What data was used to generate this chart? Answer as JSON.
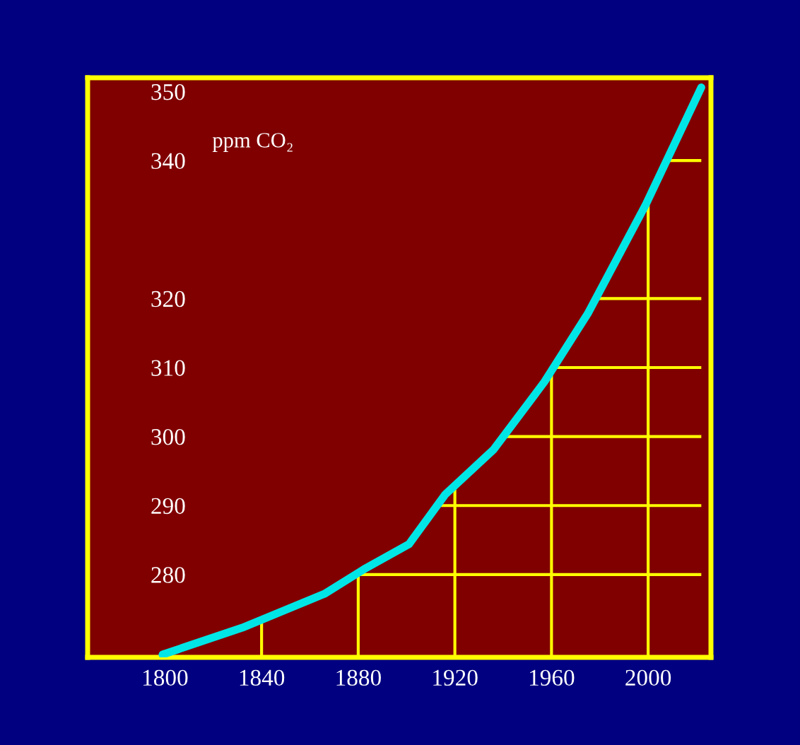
{
  "chart_data": {
    "type": "line",
    "ylabel": "ppm CO₂",
    "x": [
      1799,
      1832,
      1866,
      1883,
      1901,
      1916,
      1936,
      1957,
      1975,
      1999,
      2022
    ],
    "series": [
      {
        "color": "#00e5e5",
        "values": [
          268.4,
          272.3,
          277.2,
          280.9,
          284.4,
          291.6,
          298.1,
          307.9,
          317.8,
          333.6,
          350.6
        ]
      }
    ],
    "xlim": [
      1768,
      2026
    ],
    "xticks": [
      1800,
      1840,
      1880,
      1920,
      1960,
      2000
    ],
    "ylim": [
      268,
      352
    ],
    "yticks": [
      280,
      290,
      300,
      310,
      320,
      340,
      350
    ],
    "grid": true,
    "marker": "none",
    "line_style": "solid"
  }
}
